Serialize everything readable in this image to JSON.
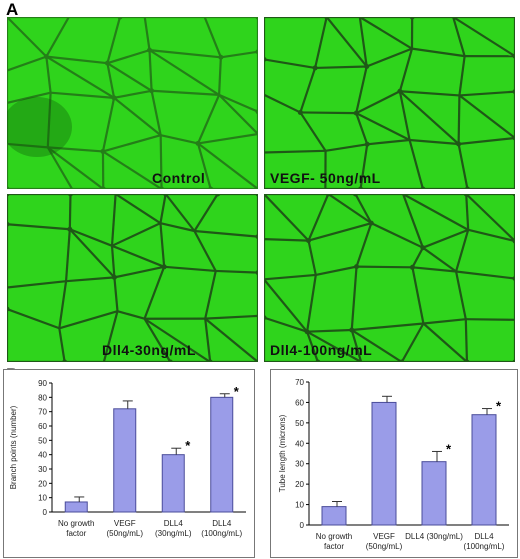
{
  "panel_a": {
    "letter": "A",
    "images": [
      {
        "label": "Control"
      },
      {
        "label": "VEGF- 50ng/mL"
      },
      {
        "label": "Dll4-30ng/mL"
      },
      {
        "label": "Dll4-100ng/mL"
      }
    ]
  },
  "panel_b": {
    "letter": "B"
  },
  "colors": {
    "bar_fill": "#9a9ce8",
    "bar_stroke": "#4a4c9a",
    "micro_bg": "#2fd41c"
  },
  "chart_data": [
    {
      "type": "bar",
      "ylabel": "Branch points (number)",
      "ylim": [
        0,
        90
      ],
      "yticks": [
        "0",
        "10",
        "20",
        "30",
        "40",
        "50",
        "60",
        "70",
        "80",
        "90"
      ],
      "categories": [
        [
          "No growth",
          "factor"
        ],
        [
          "VEGF",
          "(50ng/mL)"
        ],
        [
          "DLL4",
          "(30ng/mL)"
        ],
        [
          "DLL4",
          "(100ng/mL)"
        ]
      ],
      "values": [
        7,
        72,
        40,
        80
      ],
      "errors": [
        3.5,
        5.5,
        4.5,
        2.5
      ],
      "significance": [
        "",
        "",
        "*",
        "*"
      ]
    },
    {
      "type": "bar",
      "ylabel": "Tube length (microns)",
      "ylim": [
        0,
        70
      ],
      "yticks": [
        "0",
        "10",
        "20",
        "30",
        "40",
        "50",
        "60",
        "70"
      ],
      "categories": [
        [
          "No growth",
          "factor"
        ],
        [
          "VEGF",
          "(50ng/mL)"
        ],
        [
          "DLL4 (30ng/mL)"
        ],
        [
          "DLL4",
          "(100ng/mL)"
        ]
      ],
      "values": [
        9,
        60,
        31,
        54
      ],
      "errors": [
        2.5,
        3,
        5,
        3
      ],
      "significance": [
        "",
        "",
        "*",
        "*"
      ]
    }
  ]
}
